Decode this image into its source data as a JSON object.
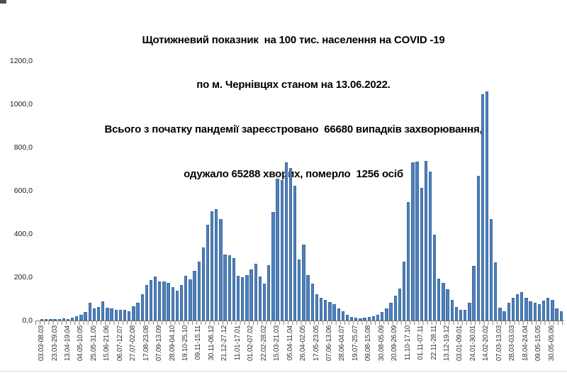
{
  "title": {
    "lines": [
      "Щотижневий показник  на 100 тис. населення на COVID -19",
      "по м. Чернівцях станом на 13.06.2022.",
      "Всього з початку пандемії зареєстровано  66680 випадків захворювання,",
      "одужало 65288 хворих, померло  1256 осіб"
    ]
  },
  "chart_data": {
    "type": "bar",
    "title": "Щотижневий показник на 100 тис. населення на COVID-19 по м. Чернівцях станом на 13.06.2022",
    "subtitle": "Всього з початку пандемії зареєстровано 66680 випадків захворювання, одужало 65288 хворих, померло 1256 осіб",
    "xlabel": "",
    "ylabel": "",
    "ylim": [
      0,
      1200
    ],
    "grid": false,
    "legend": "none",
    "bar_color": "#4F81BD",
    "bar_border_color": "#2E5A8B",
    "y_tick_labels": [
      "1200,0",
      "1000,0",
      "800,0",
      "600,0",
      "400,0",
      "200,0",
      "0,0"
    ],
    "x_label_step": 3,
    "x_tick_labels": [
      "03.03-08.03",
      "23.03-29.03",
      "13.04-19.04",
      "04.05-10.05",
      "25.05-31.05",
      "15.06-21.06",
      "06.07-12.07",
      "27.07-02.08",
      "17.08-23.08",
      "07.09-13.09",
      "28.09-04.10",
      "19.10-25.10",
      "09.11-15.11",
      "30.11-06.12",
      "21.12-27.12",
      "11.01-17.01",
      "01.02-07.02",
      "22.02-28.02",
      "15.03-21.03",
      "05.04-11.04",
      "26.04-02.05",
      "17.05-23.05",
      "07.06-13.06",
      "28.06-04.07",
      "19.07-25.07",
      "09.08-15.08",
      "30.08-05.09",
      "20.09-26.09",
      "11.10-17.10",
      "01.11-07.11",
      "22.11-28.11",
      "13.12-19.12",
      "03.01-09.01",
      "24.01-30.01",
      "14.02-20.02",
      "07.03-13.03",
      "28.03-03.03",
      "18.04-24.04",
      "09.05-15.05",
      "30.05-05.06"
    ],
    "values": [
      8,
      5,
      5,
      5,
      6,
      9,
      7,
      13,
      20,
      25,
      40,
      82,
      55,
      62,
      88,
      60,
      55,
      50,
      48,
      50,
      44,
      66,
      82,
      120,
      164,
      186,
      202,
      180,
      180,
      175,
      153,
      137,
      164,
      208,
      191,
      230,
      273,
      339,
      443,
      504,
      514,
      470,
      306,
      300,
      290,
      205,
      200,
      210,
      235,
      262,
      202,
      169,
      257,
      503,
      656,
      650,
      732,
      705,
      623,
      283,
      350,
      210,
      170,
      120,
      105,
      95,
      85,
      75,
      55,
      44,
      27,
      16,
      13,
      11,
      13,
      15,
      20,
      27,
      38,
      55,
      82,
      115,
      148,
      273,
      546,
      732,
      735,
      613,
      738,
      690,
      398,
      192,
      174,
      143,
      94,
      61,
      49,
      49,
      83,
      253,
      668,
      1045,
      1058,
      470,
      269,
      60,
      44,
      82,
      104,
      120,
      131,
      104,
      88,
      82,
      77,
      93,
      104,
      96,
      55,
      44
    ]
  }
}
